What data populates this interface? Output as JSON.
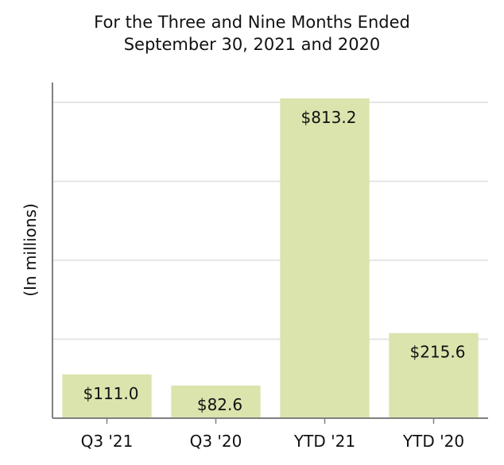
{
  "title_lines": [
    "For the Three and Nine Months Ended",
    "September 30, 2021 and 2020"
  ],
  "chart_data": {
    "type": "bar",
    "title": "For the Three and Nine Months Ended September 30, 2021 and 2020",
    "xlabel": "",
    "ylabel": "(In millions)",
    "categories": [
      "Q3 '21",
      "Q3 '20",
      "YTD '21",
      "YTD '20"
    ],
    "values": [
      111.0,
      82.6,
      813.2,
      215.6
    ],
    "data_labels": [
      "$111.0",
      "$82.6",
      "$813.2",
      "$215.6"
    ],
    "ylim": [
      0,
      800
    ],
    "grid": true,
    "bar_color": "#dbe4ad",
    "axis_color": "#808080",
    "grid_color": "#e6e6e6"
  }
}
